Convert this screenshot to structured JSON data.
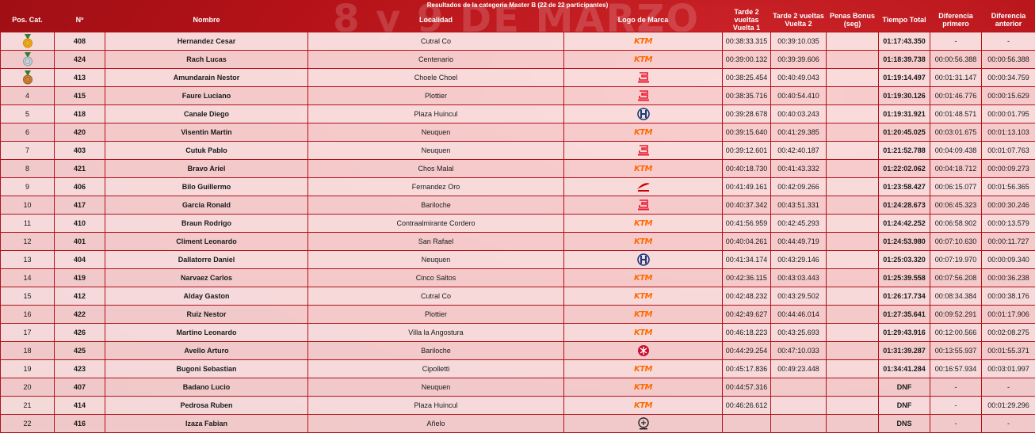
{
  "page": {
    "title": "Resultados de la categoria Master B (22 de 22 participantes)",
    "bg_text": "8 y 9 DE MARZO"
  },
  "columns": [
    "Pos. Cat.",
    "Nº",
    "Nombre",
    "Localidad",
    "Logo de Marca",
    "Tarde 2 vueltas Vuelta 1",
    "Tarde 2 vueltas Vuelta 2",
    "Penas Bonus (seg)",
    "Tiempo Total",
    "Diferencia primero",
    "Diferencia anterior"
  ],
  "colors": {
    "ktm": "#ff6a00",
    "gasgas": "#e8192c",
    "husqvarna": "#1a3a7a",
    "honda": "#cc0000",
    "yamaha": "#c8102e",
    "kawasaki": "#222222"
  },
  "rows": [
    {
      "pos": "",
      "medal": "gold",
      "num": "408",
      "name": "Hernandez Cesar",
      "loc": "Cutral Co",
      "brand": "ktm",
      "brand_label": "KTM",
      "v1": "00:38:33.315",
      "v2": "00:39:10.035",
      "pen": "",
      "total": "01:17:43.350",
      "dif1": "-",
      "difa": "-"
    },
    {
      "pos": "",
      "medal": "silver",
      "num": "424",
      "name": "Rach Lucas",
      "loc": "Centenario",
      "brand": "ktm",
      "brand_label": "KTM",
      "v1": "00:39:00.132",
      "v2": "00:39:39.606",
      "pen": "",
      "total": "01:18:39.738",
      "dif1": "00:00:56.388",
      "difa": "00:00:56.388"
    },
    {
      "pos": "",
      "medal": "bronze",
      "num": "413",
      "name": "Amundarain Nestor",
      "loc": "Choele Choel",
      "brand": "gasgas",
      "brand_label": "GASGAS",
      "v1": "00:38:25.454",
      "v2": "00:40:49.043",
      "pen": "",
      "total": "01:19:14.497",
      "dif1": "00:01:31.147",
      "difa": "00:00:34.759"
    },
    {
      "pos": "4",
      "medal": "",
      "num": "415",
      "name": "Faure Luciano",
      "loc": "Plottier",
      "brand": "gasgas",
      "brand_label": "GASGAS",
      "v1": "00:38:35.716",
      "v2": "00:40:54.410",
      "pen": "",
      "total": "01:19:30.126",
      "dif1": "00:01:46.776",
      "difa": "00:00:15.629"
    },
    {
      "pos": "5",
      "medal": "",
      "num": "418",
      "name": "Canale Diego",
      "loc": "Plaza Huincul",
      "brand": "husqvarna",
      "brand_label": "H",
      "v1": "00:39:28.678",
      "v2": "00:40:03.243",
      "pen": "",
      "total": "01:19:31.921",
      "dif1": "00:01:48.571",
      "difa": "00:00:01.795"
    },
    {
      "pos": "6",
      "medal": "",
      "num": "420",
      "name": "Visentin Martin",
      "loc": "Neuquen",
      "brand": "ktm",
      "brand_label": "KTM",
      "v1": "00:39:15.640",
      "v2": "00:41:29.385",
      "pen": "",
      "total": "01:20:45.025",
      "dif1": "00:03:01.675",
      "difa": "00:01:13.103"
    },
    {
      "pos": "7",
      "medal": "",
      "num": "403",
      "name": "Cutuk Pablo",
      "loc": "Neuquen",
      "brand": "gasgas",
      "brand_label": "GASGAS",
      "v1": "00:39:12.601",
      "v2": "00:42:40.187",
      "pen": "",
      "total": "01:21:52.788",
      "dif1": "00:04:09.438",
      "difa": "00:01:07.763"
    },
    {
      "pos": "8",
      "medal": "",
      "num": "421",
      "name": "Bravo Ariel",
      "loc": "Chos Malal",
      "brand": "ktm",
      "brand_label": "KTM",
      "v1": "00:40:18.730",
      "v2": "00:41:43.332",
      "pen": "",
      "total": "01:22:02.062",
      "dif1": "00:04:18.712",
      "difa": "00:00:09.273"
    },
    {
      "pos": "9",
      "medal": "",
      "num": "406",
      "name": "Bilo Guillermo",
      "loc": "Fernandez Oro",
      "brand": "honda",
      "brand_label": "HONDA",
      "v1": "00:41:49.161",
      "v2": "00:42:09.266",
      "pen": "",
      "total": "01:23:58.427",
      "dif1": "00:06:15.077",
      "difa": "00:01:56.365"
    },
    {
      "pos": "10",
      "medal": "",
      "num": "417",
      "name": "Garcia Ronald",
      "loc": "Bariloche",
      "brand": "gasgas",
      "brand_label": "GASGAS",
      "v1": "00:40:37.342",
      "v2": "00:43:51.331",
      "pen": "",
      "total": "01:24:28.673",
      "dif1": "00:06:45.323",
      "difa": "00:00:30.246"
    },
    {
      "pos": "11",
      "medal": "",
      "num": "410",
      "name": "Braun Rodrigo",
      "loc": "Contraalmirante Cordero",
      "brand": "ktm",
      "brand_label": "KTM",
      "v1": "00:41:56.959",
      "v2": "00:42:45.293",
      "pen": "",
      "total": "01:24:42.252",
      "dif1": "00:06:58.902",
      "difa": "00:00:13.579"
    },
    {
      "pos": "12",
      "medal": "",
      "num": "401",
      "name": "Climent Leonardo",
      "loc": "San Rafael",
      "brand": "ktm",
      "brand_label": "KTM",
      "v1": "00:40:04.261",
      "v2": "00:44:49.719",
      "pen": "",
      "total": "01:24:53.980",
      "dif1": "00:07:10.630",
      "difa": "00:00:11.727"
    },
    {
      "pos": "13",
      "medal": "",
      "num": "404",
      "name": "Dallatorre Daniel",
      "loc": "Neuquen",
      "brand": "husqvarna",
      "brand_label": "H",
      "v1": "00:41:34.174",
      "v2": "00:43:29.146",
      "pen": "",
      "total": "01:25:03.320",
      "dif1": "00:07:19.970",
      "difa": "00:00:09.340"
    },
    {
      "pos": "14",
      "medal": "",
      "num": "419",
      "name": "Narvaez Carlos",
      "loc": "Cinco Saltos",
      "brand": "ktm",
      "brand_label": "KTM",
      "v1": "00:42:36.115",
      "v2": "00:43:03.443",
      "pen": "",
      "total": "01:25:39.558",
      "dif1": "00:07:56.208",
      "difa": "00:00:36.238"
    },
    {
      "pos": "15",
      "medal": "",
      "num": "412",
      "name": "Alday Gaston",
      "loc": "Cutral Co",
      "brand": "ktm",
      "brand_label": "KTM",
      "v1": "00:42:48.232",
      "v2": "00:43:29.502",
      "pen": "",
      "total": "01:26:17.734",
      "dif1": "00:08:34.384",
      "difa": "00:00:38.176"
    },
    {
      "pos": "16",
      "medal": "",
      "num": "422",
      "name": "Ruiz Nestor",
      "loc": "Plottier",
      "brand": "ktm",
      "brand_label": "KTM",
      "v1": "00:42:49.627",
      "v2": "00:44:46.014",
      "pen": "",
      "total": "01:27:35.641",
      "dif1": "00:09:52.291",
      "difa": "00:01:17.906"
    },
    {
      "pos": "17",
      "medal": "",
      "num": "426",
      "name": "Martino Leonardo",
      "loc": "Villa la Angostura",
      "brand": "ktm",
      "brand_label": "KTM",
      "v1": "00:46:18.223",
      "v2": "00:43:25.693",
      "pen": "",
      "total": "01:29:43.916",
      "dif1": "00:12:00.566",
      "difa": "00:02:08.275"
    },
    {
      "pos": "18",
      "medal": "",
      "num": "425",
      "name": "Avello Arturo",
      "loc": "Bariloche",
      "brand": "yamaha",
      "brand_label": "Y",
      "v1": "00:44:29.254",
      "v2": "00:47:10.033",
      "pen": "",
      "total": "01:31:39.287",
      "dif1": "00:13:55.937",
      "difa": "00:01:55.371"
    },
    {
      "pos": "19",
      "medal": "",
      "num": "423",
      "name": "Bugoni Sebastian",
      "loc": "Cipolletti",
      "brand": "ktm",
      "brand_label": "KTM",
      "v1": "00:45:17.836",
      "v2": "00:49:23.448",
      "pen": "",
      "total": "01:34:41.284",
      "dif1": "00:16:57.934",
      "difa": "00:03:01.997"
    },
    {
      "pos": "20",
      "medal": "",
      "num": "407",
      "name": "Badano Lucio",
      "loc": "Neuquen",
      "brand": "ktm",
      "brand_label": "KTM",
      "v1": "00:44:57.316",
      "v2": "",
      "pen": "",
      "total": "DNF",
      "dif1": "-",
      "difa": "-"
    },
    {
      "pos": "21",
      "medal": "",
      "num": "414",
      "name": "Pedrosa Ruben",
      "loc": "Plaza Huincul",
      "brand": "ktm",
      "brand_label": "KTM",
      "v1": "00:46:26.612",
      "v2": "",
      "pen": "",
      "total": "DNF",
      "dif1": "-",
      "difa": "00:01:29.296"
    },
    {
      "pos": "22",
      "medal": "",
      "num": "416",
      "name": "Izaza Fabian",
      "loc": "Añelo",
      "brand": "kawasaki",
      "brand_label": "K",
      "v1": "",
      "v2": "",
      "pen": "",
      "total": "DNS",
      "dif1": "-",
      "difa": "-"
    }
  ]
}
